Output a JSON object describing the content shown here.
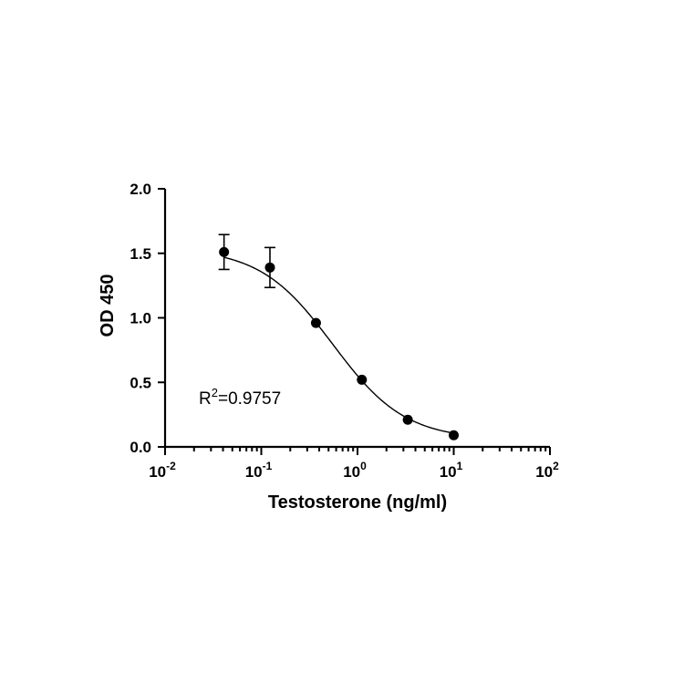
{
  "chart_data": {
    "type": "scatter",
    "x_scale": "log",
    "xlabel": "Testosterone (ng/ml)",
    "ylabel": "OD 450",
    "xlim": [
      0.01,
      100
    ],
    "ylim": [
      0,
      2.0
    ],
    "x_ticks": [
      {
        "value": 0.01,
        "base": "10",
        "exp": "-2"
      },
      {
        "value": 0.1,
        "base": "10",
        "exp": "-1"
      },
      {
        "value": 1,
        "base": "10",
        "exp": "0"
      },
      {
        "value": 10,
        "base": "10",
        "exp": "1"
      },
      {
        "value": 100,
        "base": "10",
        "exp": "2"
      }
    ],
    "y_ticks": [
      "0.0",
      "0.5",
      "1.0",
      "1.5",
      "2.0"
    ],
    "points": [
      {
        "x": 0.041,
        "y": 1.51,
        "err": 0.135
      },
      {
        "x": 0.123,
        "y": 1.39,
        "err": 0.155
      },
      {
        "x": 0.37,
        "y": 0.96,
        "err": 0
      },
      {
        "x": 1.11,
        "y": 0.52,
        "err": 0
      },
      {
        "x": 3.33,
        "y": 0.21,
        "err": 0
      },
      {
        "x": 10,
        "y": 0.09,
        "err": 0
      }
    ],
    "fit": {
      "type": "4PL",
      "top": 1.54,
      "bottom": 0.055,
      "ec50": 0.55,
      "hill": 1.15
    },
    "annotation": {
      "text": "R",
      "superscript": "2",
      "value": "=0.9757"
    },
    "grid": false,
    "legend": "none"
  }
}
